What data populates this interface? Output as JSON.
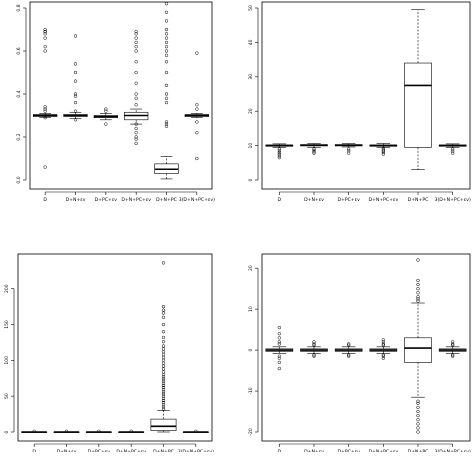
{
  "chart_data": [
    {
      "type": "boxplot",
      "categories": [
        "D",
        "D+N+εv",
        "D+PC+εv",
        "D+N+PC+εv",
        "D+N+PC",
        "3(D+N+PC+εv)"
      ],
      "ylim": [
        0,
        0.8
      ],
      "yticks": [
        "0.0",
        "0.2",
        "0.4",
        "0.6",
        "0.8"
      ],
      "boxes": [
        {
          "q1": 0.295,
          "median": 0.3,
          "q3": 0.305,
          "whisker_low": 0.29,
          "whisker_high": 0.31
        },
        {
          "q1": 0.295,
          "median": 0.3,
          "q3": 0.305,
          "whisker_low": 0.285,
          "whisker_high": 0.315
        },
        {
          "q1": 0.29,
          "median": 0.295,
          "q3": 0.3,
          "whisker_low": 0.28,
          "whisker_high": 0.31
        },
        {
          "q1": 0.28,
          "median": 0.3,
          "q3": 0.315,
          "whisker_low": 0.26,
          "whisker_high": 0.33
        },
        {
          "q1": 0.03,
          "median": 0.05,
          "q3": 0.075,
          "whisker_low": 0.005,
          "whisker_high": 0.11
        },
        {
          "q1": 0.295,
          "median": 0.3,
          "q3": 0.305,
          "whisker_low": 0.29,
          "whisker_high": 0.31
        }
      ],
      "outliers": [
        [
          0.06,
          0.29,
          0.32,
          0.33,
          0.34,
          0.6,
          0.62,
          0.66,
          0.68,
          0.69,
          0.69,
          0.7
        ],
        [
          0.28,
          0.32,
          0.36,
          0.39,
          0.4,
          0.46,
          0.5,
          0.54,
          0.67
        ],
        [
          0.26,
          0.32,
          0.33
        ],
        [
          0.17,
          0.19,
          0.2,
          0.22,
          0.24,
          0.26,
          0.35,
          0.38,
          0.4,
          0.45,
          0.5,
          0.55,
          0.6,
          0.62,
          0.64,
          0.66,
          0.68,
          0.69
        ],
        [
          0.25,
          0.26,
          0.27,
          0.36,
          0.38,
          0.4,
          0.44,
          0.5,
          0.55,
          0.58,
          0.6,
          0.62,
          0.64,
          0.66,
          0.68,
          0.7,
          0.74,
          0.78,
          0.82,
          0.9
        ],
        [
          0.1,
          0.22,
          0.27,
          0.33,
          0.35,
          0.59
        ]
      ]
    },
    {
      "type": "boxplot",
      "categories": [
        "D",
        "D+N+εv",
        "D+PC+εv",
        "D+N+PC+εv",
        "D+N+PC",
        "3(D+N+PC+εv)"
      ],
      "ylim": [
        0,
        50
      ],
      "yticks": [
        "0",
        "10",
        "20",
        "30",
        "40",
        "50"
      ],
      "boxes": [
        {
          "q1": 9.8,
          "median": 10.0,
          "q3": 10.2,
          "whisker_low": 9.5,
          "whisker_high": 10.5
        },
        {
          "q1": 9.9,
          "median": 10.1,
          "q3": 10.3,
          "whisker_low": 9.5,
          "whisker_high": 10.6
        },
        {
          "q1": 9.9,
          "median": 10.1,
          "q3": 10.3,
          "whisker_low": 9.6,
          "whisker_high": 10.6
        },
        {
          "q1": 9.8,
          "median": 10.0,
          "q3": 10.2,
          "whisker_low": 9.4,
          "whisker_high": 10.6
        },
        {
          "q1": 9.5,
          "median": 27.5,
          "q3": 34.0,
          "whisker_low": 3.0,
          "whisker_high": 49.5
        },
        {
          "q1": 9.8,
          "median": 10.0,
          "q3": 10.2,
          "whisker_low": 9.5,
          "whisker_high": 10.5
        }
      ],
      "outliers": [
        [
          6.5,
          7.0,
          7.5,
          8.0,
          8.5,
          9.0
        ],
        [
          7.8,
          8.2,
          8.6,
          9.0
        ],
        [
          7.8,
          8.5,
          9.0
        ],
        [
          7.5,
          8.0,
          8.4,
          8.8,
          9.2
        ],
        [],
        [
          7.8,
          8.4,
          9.0
        ]
      ]
    },
    {
      "type": "boxplot",
      "categories": [
        "D",
        "D+N+εv",
        "D+PC+εv",
        "D+N+PC+εv",
        "D+N+PC",
        "3(D+N+PC+εv)"
      ],
      "ylim": [
        0,
        240
      ],
      "yticks": [
        "0",
        "50",
        "100",
        "150",
        "200"
      ],
      "boxes": [
        {
          "q1": 0,
          "median": 0,
          "q3": 0,
          "whisker_low": 0,
          "whisker_high": 0
        },
        {
          "q1": 0,
          "median": 0,
          "q3": 0,
          "whisker_low": 0,
          "whisker_high": 0
        },
        {
          "q1": 0,
          "median": 0,
          "q3": 0,
          "whisker_low": 0,
          "whisker_high": 0
        },
        {
          "q1": 0,
          "median": 0,
          "q3": 0,
          "whisker_low": 0,
          "whisker_high": 0
        },
        {
          "q1": 2,
          "median": 8,
          "q3": 18,
          "whisker_low": 0,
          "whisker_high": 30
        },
        {
          "q1": 0,
          "median": 0,
          "q3": 0,
          "whisker_low": 0,
          "whisker_high": 0
        }
      ],
      "outliers": [
        [
          1
        ],
        [
          1
        ],
        [
          1
        ],
        [
          1
        ],
        [
          32,
          35,
          38,
          41,
          44,
          47,
          50,
          53,
          56,
          59,
          62,
          65,
          68,
          71,
          74,
          77,
          80,
          84,
          88,
          92,
          96,
          100,
          104,
          108,
          112,
          116,
          120,
          126,
          132,
          140,
          150,
          160,
          166,
          170,
          175,
          236
        ],
        [
          1
        ]
      ]
    },
    {
      "type": "boxplot",
      "categories": [
        "D",
        "D+N+εv",
        "D+PC+εv",
        "D+N+PC+εv",
        "D+N+PC",
        "3(D+N+PC+εv)"
      ],
      "ylim": [
        -20,
        22
      ],
      "yticks": [
        "-20",
        "-10",
        "0",
        "10",
        "20"
      ],
      "boxes": [
        {
          "q1": -0.3,
          "median": 0,
          "q3": 0.3,
          "whisker_low": -0.8,
          "whisker_high": 0.8
        },
        {
          "q1": -0.3,
          "median": 0,
          "q3": 0.3,
          "whisker_low": -0.8,
          "whisker_high": 0.8
        },
        {
          "q1": -0.3,
          "median": 0,
          "q3": 0.3,
          "whisker_low": -0.8,
          "whisker_high": 0.8
        },
        {
          "q1": -0.3,
          "median": 0,
          "q3": 0.3,
          "whisker_low": -0.8,
          "whisker_high": 0.8
        },
        {
          "q1": -3.0,
          "median": 0.5,
          "q3": 3.0,
          "whisker_low": -11.5,
          "whisker_high": 11.5
        },
        {
          "q1": -0.3,
          "median": 0,
          "q3": 0.3,
          "whisker_low": -0.8,
          "whisker_high": 0.8
        }
      ],
      "outliers": [
        [
          -4.5,
          -3,
          -2,
          -1.5,
          1.5,
          2,
          3,
          4,
          5.5
        ],
        [
          -1.5,
          -1.2,
          1.2,
          1.5,
          2
        ],
        [
          -1.5,
          -1.2,
          1.2,
          1.5
        ],
        [
          -2,
          -1.5,
          -1.2,
          1.2,
          1.5,
          2,
          2.5
        ],
        [
          -20,
          -19,
          -18,
          -17,
          -16,
          -15,
          -14,
          -13,
          -12.5,
          12,
          12.5,
          13,
          14,
          15,
          16,
          17,
          22
        ],
        [
          -1.5,
          -1.2,
          1.2,
          1.5,
          2
        ]
      ]
    }
  ]
}
